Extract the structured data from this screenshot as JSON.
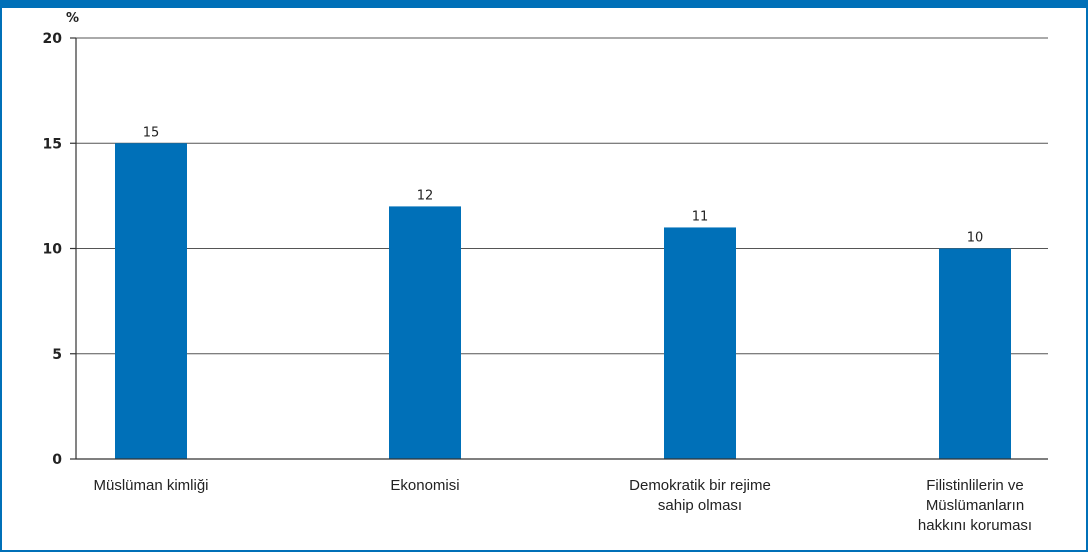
{
  "chart_data": {
    "type": "bar",
    "unit_label": "%",
    "categories": [
      "Müslüman kimliği",
      "Ekonomisi",
      "Demokratik bir rejime sahip olması",
      "Filistinlilerin ve Müslümanların hakkını koruması"
    ],
    "category_lines": [
      [
        "Müslüman kimliği"
      ],
      [
        "Ekonomisi"
      ],
      [
        "Demokratik bir rejime",
        "sahip olması"
      ],
      [
        "Filistinlilerin ve",
        "Müslümanların",
        "hakkını koruması"
      ]
    ],
    "values": [
      15,
      12,
      11,
      10
    ],
    "data_labels": [
      "15",
      "12",
      "11",
      "10"
    ],
    "ylim": [
      0,
      20
    ],
    "yticks": [
      0,
      5,
      10,
      15,
      20
    ],
    "ytick_labels": [
      "0",
      "5",
      "10",
      "15",
      "20"
    ],
    "grid": true,
    "colors": {
      "bar": "#0070b8",
      "frame": "#0070b8"
    }
  }
}
